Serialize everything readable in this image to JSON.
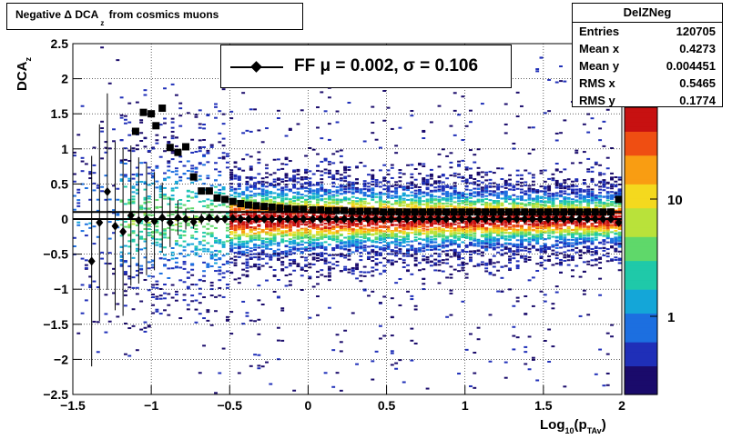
{
  "title": {
    "text": "Negative Δ DCA",
    "sub": "z",
    "rest": " from cosmics muons"
  },
  "stats": {
    "name": "DelZNeg",
    "rows": [
      {
        "label": "Entries",
        "value": "120705"
      },
      {
        "label": "Mean x",
        "value": "0.4273"
      },
      {
        "label": "Mean y",
        "value": "0.004451"
      },
      {
        "label": "RMS x",
        "value": "0.5465"
      },
      {
        "label": "RMS y",
        "value": "0.1774"
      }
    ]
  },
  "legend": {
    "text": "FF μ =  0.002, σ =   0.106"
  },
  "axes": {
    "ylabel_main": "DCA",
    "ylabel_sub": "z",
    "xlabel_main": "Log",
    "xlabel_sub1": "10",
    "xlabel_mid": "(p",
    "xlabel_sub2": "TAv",
    "xlabel_end": ")"
  },
  "colors": {
    "profile_markers": "#000000",
    "palette": "rainbow"
  },
  "chart_data": {
    "type": "heatmap",
    "xlim": [
      -1.5,
      2
    ],
    "ylim": [
      -2.5,
      2.5
    ],
    "x_ticks": [
      "−1.5",
      "−1",
      "−0.5",
      "0",
      "0.5",
      "1",
      "1.5",
      "2"
    ],
    "x_tick_values": [
      -1.5,
      -1,
      -0.5,
      0,
      0.5,
      1,
      1.5,
      2
    ],
    "y_ticks": [
      "2.5",
      "2",
      "1.5",
      "1",
      "0.5",
      "0",
      "−0.5",
      "−1",
      "−1.5",
      "−2",
      "−2.5"
    ],
    "y_tick_values": [
      2.5,
      2,
      1.5,
      1,
      0.5,
      0,
      -0.5,
      -1,
      -1.5,
      -2,
      -2.5
    ],
    "grid": true,
    "z_scale": "log",
    "z_tick_labels": [
      "10",
      "1"
    ],
    "z_tick_values": [
      10,
      1
    ],
    "series": [
      {
        "name": "FF",
        "marker": "diamond",
        "x": [
          -1.38,
          -1.33,
          -1.28,
          -1.23,
          -1.18,
          -1.13,
          -1.08,
          -1.03,
          -0.98,
          -0.93,
          -0.88,
          -0.83,
          -0.78,
          -0.73,
          -0.68,
          -0.63,
          -0.58,
          -0.53,
          -0.48,
          -0.43,
          -0.38,
          -0.33,
          -0.28,
          -0.23,
          -0.18,
          -0.13,
          -0.08,
          -0.03,
          0.03,
          0.08,
          0.13,
          0.18,
          0.23,
          0.28,
          0.33,
          0.38,
          0.43,
          0.48,
          0.53,
          0.58,
          0.63,
          0.68,
          0.73,
          0.78,
          0.83,
          0.88,
          0.93,
          0.98,
          1.03,
          1.08,
          1.13,
          1.18,
          1.23,
          1.28,
          1.33,
          1.38,
          1.43,
          1.48,
          1.53,
          1.58,
          1.63,
          1.68,
          1.73,
          1.78,
          1.83,
          1.88,
          1.93,
          1.98
        ],
        "y": [
          -0.6,
          -0.05,
          0.39,
          -0.1,
          -0.18,
          0.05,
          -0.02,
          0.0,
          -0.03,
          0.02,
          -0.05,
          0.02,
          0.0,
          -0.04,
          0.0,
          0.02,
          0.0,
          0.0,
          0.01,
          0.0,
          0.0,
          0.0,
          0.0,
          0.0,
          0.0,
          0.0,
          0.0,
          0.0,
          0.0,
          0.0,
          0.0,
          0.0,
          0.0,
          0.0,
          0.0,
          0.0,
          0.0,
          0.0,
          0.0,
          0.0,
          0.0,
          0.0,
          0.0,
          0.0,
          0.0,
          0.0,
          0.0,
          0.0,
          0.0,
          0.0,
          0.0,
          0.0,
          0.0,
          0.0,
          0.0,
          0.0,
          0.0,
          0.0,
          0.0,
          0.0,
          0.0,
          0.0,
          0.0,
          0.0,
          0.0,
          0.0,
          0.0,
          -0.05
        ],
        "yerr": [
          1.5,
          1.4,
          1.4,
          1.2,
          1.2,
          1.0,
          0.9,
          0.8,
          0.7,
          0.5,
          0.35,
          0.25,
          0.15,
          0.1,
          0.08,
          0.06,
          0.05,
          0.04,
          0.03,
          0.03,
          0.03,
          0.03,
          0.03,
          0.03,
          0.03,
          0.03,
          0.03,
          0.03,
          0.03,
          0.03,
          0.03,
          0.03,
          0.03,
          0.03,
          0.03,
          0.03,
          0.03,
          0.03,
          0.03,
          0.03,
          0.03,
          0.03,
          0.03,
          0.03,
          0.03,
          0.03,
          0.03,
          0.03,
          0.03,
          0.03,
          0.03,
          0.03,
          0.03,
          0.03,
          0.03,
          0.03,
          0.03,
          0.03,
          0.03,
          0.03,
          0.03,
          0.03,
          0.03,
          0.03,
          0.03,
          0.03,
          0.03,
          0.05
        ]
      },
      {
        "marker": "square",
        "x": [
          -1.1,
          -1.05,
          -1.0,
          -0.97,
          -0.93,
          -0.88,
          -0.83,
          -0.78,
          -0.73,
          -0.68,
          -0.63,
          -0.58,
          -0.53,
          -0.48,
          -0.43,
          -0.38,
          -0.33,
          -0.28,
          -0.23,
          -0.18,
          -0.13,
          -0.08,
          -0.03,
          0.03,
          0.08,
          0.13,
          0.18,
          0.23,
          0.28,
          0.33,
          0.38,
          0.43,
          0.48,
          0.53,
          0.58,
          0.63,
          0.68,
          0.73,
          0.78,
          0.83,
          0.88,
          0.93,
          0.98,
          1.03,
          1.08,
          1.13,
          1.18,
          1.23,
          1.28,
          1.33,
          1.38,
          1.43,
          1.48,
          1.53,
          1.58,
          1.63,
          1.68,
          1.73,
          1.78,
          1.83,
          1.88,
          1.93,
          1.98
        ],
        "y": [
          1.25,
          1.52,
          1.5,
          1.33,
          1.58,
          1.02,
          0.95,
          1.03,
          0.6,
          0.4,
          0.4,
          0.3,
          0.28,
          0.25,
          0.22,
          0.2,
          0.19,
          0.18,
          0.17,
          0.16,
          0.15,
          0.14,
          0.14,
          0.13,
          0.13,
          0.12,
          0.12,
          0.12,
          0.11,
          0.11,
          0.11,
          0.11,
          0.1,
          0.1,
          0.1,
          0.1,
          0.1,
          0.1,
          0.1,
          0.1,
          0.1,
          0.1,
          0.1,
          0.1,
          0.1,
          0.1,
          0.1,
          0.1,
          0.1,
          0.1,
          0.1,
          0.1,
          0.1,
          0.1,
          0.1,
          0.1,
          0.1,
          0.1,
          0.1,
          0.1,
          0.1,
          0.1,
          0.28
        ]
      }
    ]
  }
}
